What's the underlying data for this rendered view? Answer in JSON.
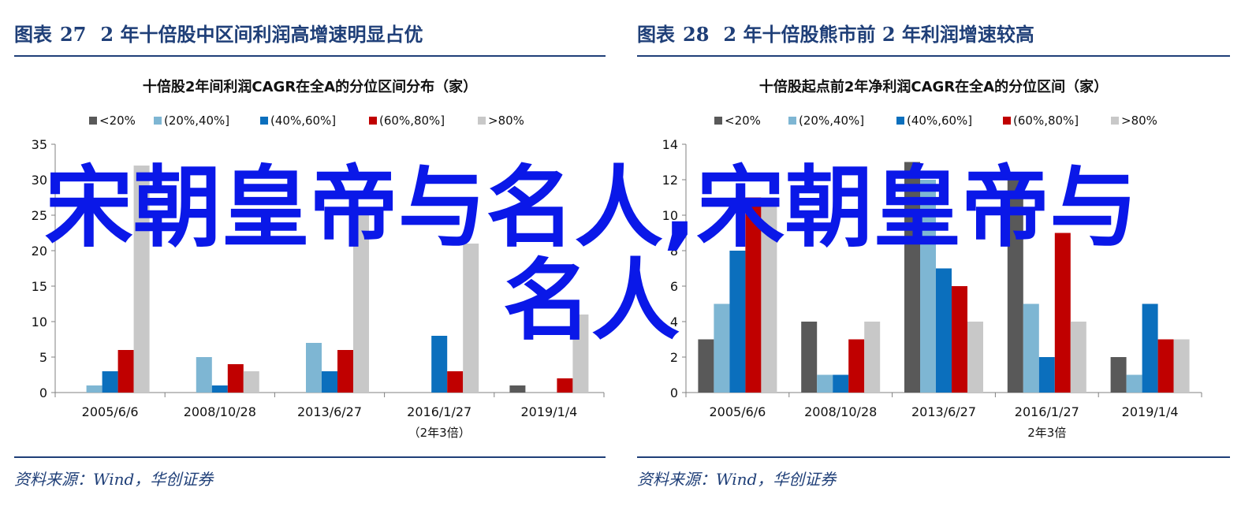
{
  "charts": [
    {
      "figure_label": "图表",
      "figure_number": "27",
      "figure_title": "2 年十倍股中区间利润高增速明显占优",
      "source": "资料来源：Wind，华创证券"
    },
    {
      "figure_label": "图表",
      "figure_number": "28",
      "figure_title": "2 年十倍股熊市前 2 年利润增速较高",
      "source": "资料来源：Wind，华创证券"
    }
  ],
  "chart_data": [
    {
      "type": "bar",
      "title": "十倍股2年间利润CAGR在全A的分位区间分布（家）",
      "categories": [
        "2005/6/6",
        "2008/10/28",
        "2013/6/27",
        "2016/1/27",
        "2019/1/4"
      ],
      "category_sublabels": [
        "",
        "",
        "",
        "（2年3倍）",
        ""
      ],
      "ylim": [
        0,
        35
      ],
      "yticks": [
        0,
        5,
        10,
        15,
        20,
        25,
        30,
        35
      ],
      "legend_position": "top",
      "series": [
        {
          "name": "<20%",
          "color": "#595959",
          "values": [
            0,
            0,
            0,
            0,
            1
          ]
        },
        {
          "name": "(20%,40%]",
          "color": "#7eb6d3",
          "values": [
            1,
            5,
            7,
            0,
            0
          ]
        },
        {
          "name": "(40%,60%]",
          "color": "#0b6fbd",
          "values": [
            3,
            1,
            3,
            8,
            0
          ]
        },
        {
          "name": "(60%,80%]",
          "color": "#c00000",
          "values": [
            6,
            4,
            6,
            3,
            2
          ]
        },
        {
          "name": ">80%",
          "color": "#c8c8c8",
          "values": [
            32,
            3,
            25,
            21,
            11
          ]
        }
      ]
    },
    {
      "type": "bar",
      "title": "十倍股起点前2年净利润CAGR在全A的分位区间（家）",
      "categories": [
        "2005/6/6",
        "2008/10/28",
        "2013/6/27",
        "2016/1/27",
        "2019/1/4"
      ],
      "category_sublabels": [
        "",
        "",
        "",
        "2年3倍",
        ""
      ],
      "ylim": [
        0,
        14
      ],
      "yticks": [
        0,
        2,
        4,
        6,
        8,
        10,
        12,
        14
      ],
      "legend_position": "top",
      "series": [
        {
          "name": "<20%",
          "color": "#595959",
          "values": [
            3,
            4,
            13,
            12,
            2
          ]
        },
        {
          "name": "(20%,40%]",
          "color": "#7eb6d3",
          "values": [
            5,
            1,
            12,
            5,
            1
          ]
        },
        {
          "name": "(40%,60%]",
          "color": "#0b6fbd",
          "values": [
            8,
            1,
            7,
            2,
            5
          ]
        },
        {
          "name": "(60%,80%]",
          "color": "#c00000",
          "values": [
            11,
            3,
            6,
            9,
            3
          ]
        },
        {
          "name": ">80%",
          "color": "#c8c8c8",
          "values": [
            11,
            4,
            4,
            4,
            3
          ]
        }
      ]
    }
  ],
  "overlay_text": "宋朝皇帝与名人,宋朝皇帝与名人"
}
